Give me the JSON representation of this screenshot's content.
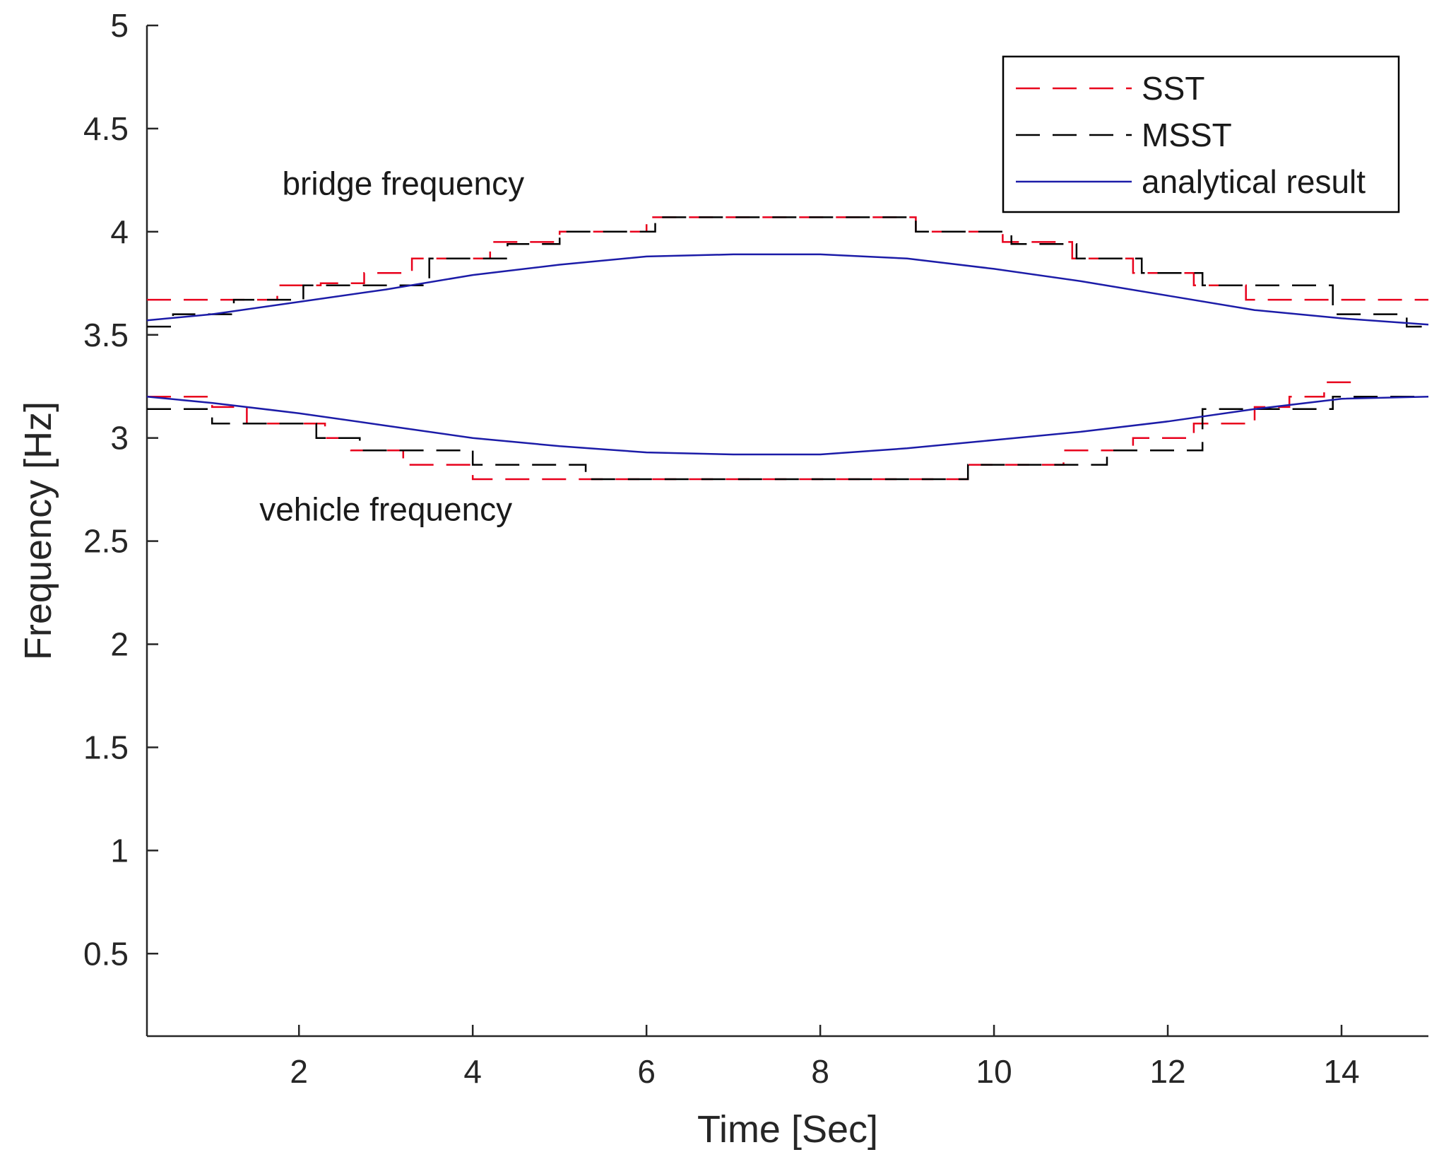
{
  "chart_data": {
    "type": "line",
    "title": "",
    "xlabel": "Time [Sec]",
    "ylabel": "Frequency [Hz]",
    "xlim": [
      0.25,
      15.0
    ],
    "ylim": [
      0.1,
      5.0
    ],
    "xticks": [
      2,
      4,
      6,
      8,
      10,
      12,
      14
    ],
    "xtick_labels": [
      "2",
      "4",
      "6",
      "8",
      "10",
      "12",
      "14"
    ],
    "yticks": [
      0.5,
      1,
      1.5,
      2,
      2.5,
      3,
      3.5,
      4,
      4.5,
      5
    ],
    "ytick_labels": [
      "0.5",
      "1",
      "1.5",
      "2",
      "2.5",
      "3",
      "3.5",
      "4",
      "4.5",
      "5"
    ],
    "legend_position": "top-right",
    "colors": {
      "SST": "#e8001c",
      "MSST": "#000000",
      "analytical result": "#1c1ca8",
      "axis": "#262626"
    },
    "series": [
      {
        "name": "SST",
        "style": "dashed",
        "color": "#e8001c",
        "x": [
          0.25,
          1.25,
          1.25,
          1.75,
          1.75,
          2.25,
          2.25,
          2.75,
          2.75,
          3.3,
          3.3,
          3.55,
          3.55,
          4.2,
          4.2,
          5.0,
          5.0,
          6.0,
          6.0,
          9.1,
          9.1,
          10.1,
          10.1,
          10.9,
          10.9,
          11.6,
          11.6,
          12.3,
          12.3,
          12.9,
          12.9,
          13.5,
          13.5,
          15.0
        ],
        "y": [
          3.67,
          3.67,
          3.67,
          3.67,
          3.74,
          3.74,
          3.75,
          3.75,
          3.8,
          3.8,
          3.87,
          3.87,
          3.87,
          3.87,
          3.95,
          3.95,
          4.0,
          4.0,
          4.07,
          4.07,
          4.0,
          4.0,
          3.95,
          3.95,
          3.87,
          3.87,
          3.8,
          3.8,
          3.74,
          3.74,
          3.67,
          3.67,
          3.67,
          3.67
        ]
      },
      {
        "name": "MSST",
        "style": "dashed",
        "color": "#000000",
        "x": [
          0.25,
          0.55,
          0.55,
          1.25,
          1.25,
          2.05,
          2.05,
          3.5,
          3.5,
          4.4,
          4.4,
          5.0,
          5.0,
          6.1,
          6.1,
          9.1,
          9.1,
          10.2,
          10.2,
          10.95,
          10.95,
          11.7,
          11.7,
          12.4,
          12.4,
          13.9,
          13.9,
          14.75,
          14.75,
          15.0
        ],
        "y": [
          3.54,
          3.54,
          3.6,
          3.6,
          3.67,
          3.67,
          3.74,
          3.74,
          3.87,
          3.87,
          3.94,
          3.94,
          4.0,
          4.0,
          4.07,
          4.07,
          4.0,
          4.0,
          3.94,
          3.94,
          3.87,
          3.87,
          3.8,
          3.8,
          3.74,
          3.74,
          3.6,
          3.6,
          3.54,
          3.54
        ]
      },
      {
        "name": "SST",
        "style": "dashed",
        "color": "#e8001c",
        "x": [
          0.25,
          1.0,
          1.0,
          1.4,
          1.4,
          2.3,
          2.3,
          2.6,
          2.6,
          3.2,
          3.2,
          4.0,
          4.0,
          5.3,
          5.3,
          9.7,
          9.7,
          10.8,
          10.8,
          11.6,
          11.6,
          12.3,
          12.3,
          13.0,
          13.0,
          13.4,
          13.4,
          13.8,
          13.8,
          14.2
        ],
        "y": [
          3.2,
          3.2,
          3.15,
          3.15,
          3.07,
          3.07,
          3.0,
          3.0,
          2.94,
          2.94,
          2.87,
          2.87,
          2.8,
          2.8,
          2.8,
          2.8,
          2.87,
          2.87,
          2.94,
          2.94,
          3.0,
          3.0,
          3.07,
          3.07,
          3.15,
          3.15,
          3.2,
          3.2,
          3.27,
          3.27
        ]
      },
      {
        "name": "MSST",
        "style": "dashed",
        "color": "#000000",
        "x": [
          0.25,
          1.0,
          1.0,
          2.2,
          2.2,
          2.7,
          2.7,
          4.0,
          4.0,
          5.3,
          5.3,
          9.7,
          9.7,
          11.3,
          11.3,
          12.4,
          12.4,
          13.9,
          13.9,
          15.0
        ],
        "y": [
          3.14,
          3.14,
          3.07,
          3.07,
          3.0,
          3.0,
          2.94,
          2.94,
          2.87,
          2.87,
          2.8,
          2.8,
          2.87,
          2.87,
          2.94,
          2.94,
          3.14,
          3.14,
          3.2,
          3.2
        ]
      },
      {
        "name": "analytical result",
        "style": "solid",
        "color": "#1c1ca8",
        "x": [
          0.25,
          1.0,
          2.0,
          3.0,
          4.0,
          5.0,
          6.0,
          7.0,
          7.6,
          8.0,
          9.0,
          10.0,
          11.0,
          12.0,
          13.0,
          14.0,
          15.0
        ],
        "y": [
          3.57,
          3.6,
          3.66,
          3.72,
          3.79,
          3.84,
          3.88,
          3.89,
          3.89,
          3.89,
          3.87,
          3.82,
          3.76,
          3.69,
          3.62,
          3.58,
          3.55
        ]
      },
      {
        "name": "analytical result",
        "style": "solid",
        "color": "#1c1ca8",
        "x": [
          0.25,
          1.0,
          2.0,
          3.0,
          4.0,
          5.0,
          6.0,
          7.0,
          7.6,
          8.0,
          9.0,
          10.0,
          11.0,
          12.0,
          13.0,
          14.0,
          15.0
        ],
        "y": [
          3.2,
          3.17,
          3.12,
          3.06,
          3.0,
          2.96,
          2.93,
          2.92,
          2.92,
          2.92,
          2.95,
          2.99,
          3.03,
          3.08,
          3.14,
          3.19,
          3.2
        ]
      }
    ],
    "annotations": [
      {
        "text": "bridge frequency",
        "x": 3.2,
        "y": 4.18
      },
      {
        "text": "vehicle frequency",
        "x": 3.0,
        "y": 2.6
      }
    ],
    "legend": [
      "SST",
      "MSST",
      "analytical result"
    ]
  }
}
